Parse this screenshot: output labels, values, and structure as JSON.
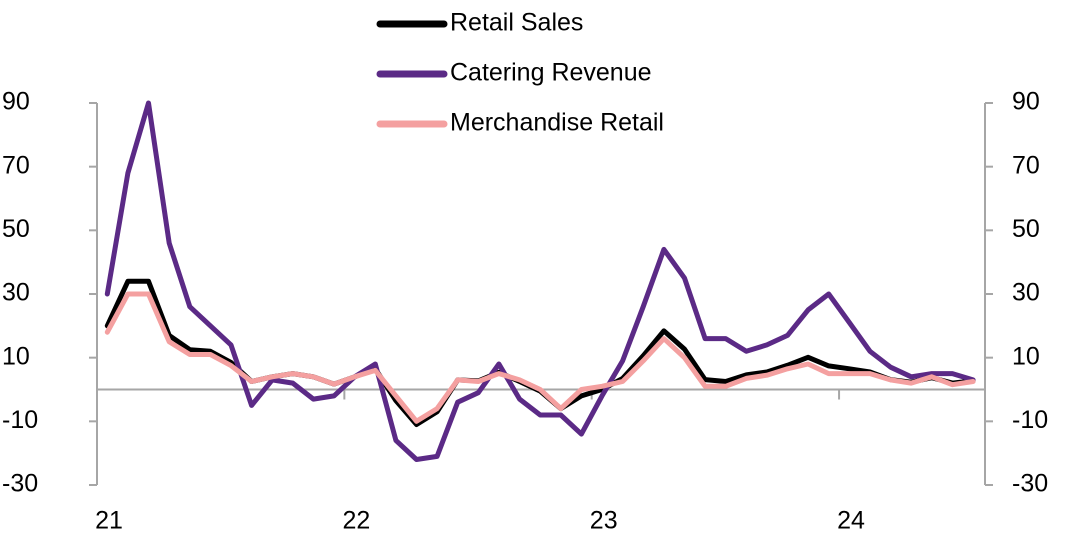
{
  "chart_data": {
    "type": "line",
    "x": [
      21.0417,
      21.125,
      21.2083,
      21.2917,
      21.375,
      21.4583,
      21.5417,
      21.625,
      21.7083,
      21.7917,
      21.875,
      21.9583,
      22.0417,
      22.125,
      22.2083,
      22.2917,
      22.375,
      22.4583,
      22.5417,
      22.625,
      22.7083,
      22.7917,
      22.875,
      22.9583,
      23.0417,
      23.125,
      23.2083,
      23.2917,
      23.375,
      23.4583,
      23.5417,
      23.625,
      23.7083,
      23.7917,
      23.875,
      23.9583,
      24.0417,
      24.125,
      24.2083,
      24.2917,
      24.375,
      24.4583,
      24.5417
    ],
    "series": [
      {
        "name": "Retail Sales",
        "color": "#000000",
        "values": [
          20,
          34,
          34,
          17,
          12.5,
          12,
          8.5,
          2.5,
          4,
          5,
          4,
          1.7,
          4,
          6.5,
          -3.5,
          -11,
          -7,
          3,
          2.7,
          5.4,
          2.5,
          -0.5,
          -6,
          -2,
          0,
          3.5,
          10.6,
          18.4,
          12.7,
          3.1,
          2.5,
          4.6,
          5.5,
          7.6,
          10.1,
          7.4,
          6.5,
          5.5,
          3.1,
          2.3,
          3.7,
          2,
          2.7
        ]
      },
      {
        "name": "Catering Revenue",
        "color": "#5b2a86",
        "values": [
          30,
          68,
          90,
          46,
          26,
          20,
          14,
          -5,
          3,
          2,
          -3,
          -2,
          4,
          8,
          -16,
          -22,
          -21,
          -4,
          -1,
          8,
          -3,
          -8,
          -8,
          -14,
          -2,
          9,
          26,
          44,
          35,
          16,
          16,
          12,
          14,
          17,
          25,
          30,
          21,
          12,
          7,
          4,
          5,
          5,
          3
        ]
      },
      {
        "name": "Merchandise Retail",
        "color": "#f4a0a0",
        "values": [
          18,
          30,
          30,
          15,
          11,
          11,
          7.5,
          2.5,
          4,
          5,
          4,
          1.7,
          4,
          6,
          -2,
          -10,
          -6,
          3,
          2.5,
          5,
          3,
          0,
          -6,
          0,
          1,
          2.5,
          9,
          16,
          10,
          1,
          1,
          3.5,
          4.5,
          6.5,
          8,
          5,
          5,
          5,
          3,
          2,
          4,
          1.5,
          2.5
        ]
      }
    ],
    "xlim": [
      21,
      24.59
    ],
    "xticks": [
      {
        "value": 21,
        "label": "21"
      },
      {
        "value": 22,
        "label": "22"
      },
      {
        "value": 23,
        "label": "23"
      },
      {
        "value": 24,
        "label": "24"
      }
    ],
    "ylim": [
      -30,
      90
    ],
    "yticks": [
      -30,
      -10,
      10,
      30,
      50,
      70,
      90
    ],
    "y2lim": [
      -30,
      90
    ],
    "y2ticks": [
      -30,
      -10,
      10,
      30,
      50,
      70,
      90
    ],
    "legend": "top",
    "grid": false
  }
}
